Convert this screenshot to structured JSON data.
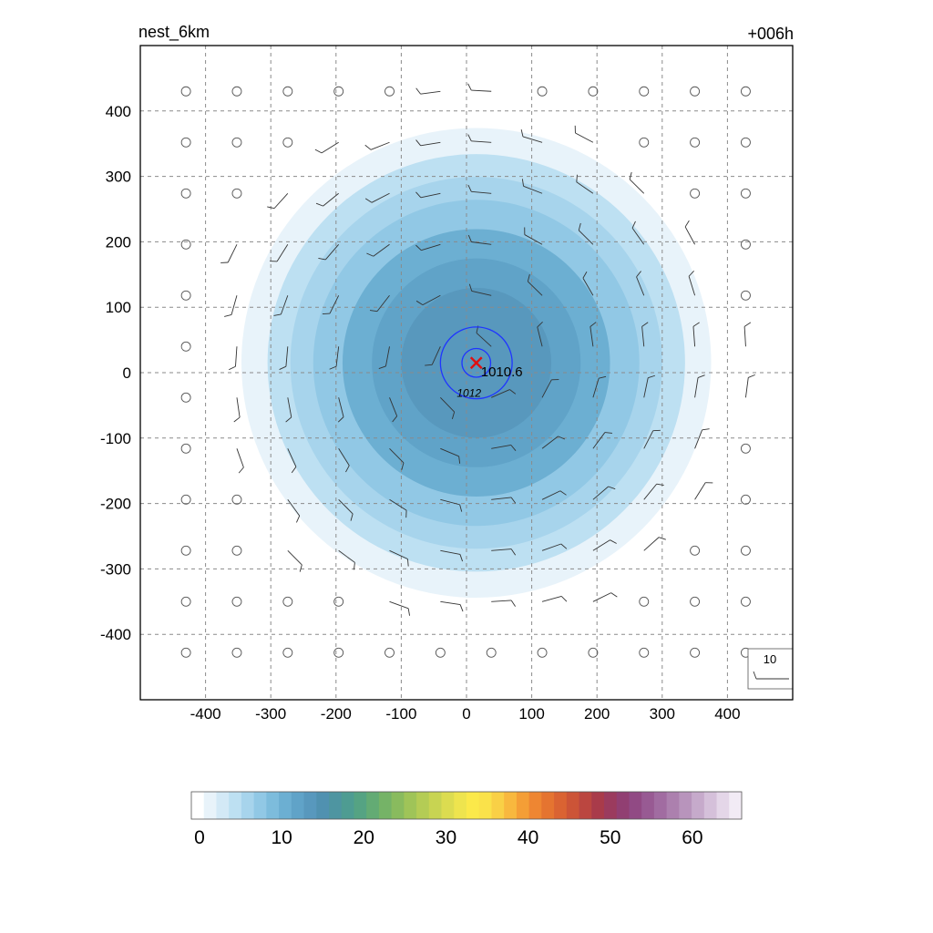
{
  "chart_data": {
    "type": "heatmap",
    "title_left": "nest_6km",
    "title_right": "+006h",
    "x_ticks": [
      -400,
      -300,
      -200,
      -100,
      0,
      100,
      200,
      300,
      400
    ],
    "y_ticks": [
      400,
      300,
      200,
      100,
      0,
      -100,
      -200,
      -300,
      -400
    ],
    "xlim": [
      -500,
      500
    ],
    "ylim": [
      -500,
      500
    ],
    "grid": true,
    "center_marker": {
      "x": 15,
      "y": 15,
      "label": "1010.6",
      "color": "#e01010"
    },
    "contours": [
      {
        "level_label": "1012",
        "radius_km": 55,
        "color": "#1f35ff"
      },
      {
        "level_label": "",
        "radius_km": 22,
        "color": "#1f35ff"
      }
    ],
    "wind_speed_rings": [
      {
        "radius_km": 360,
        "value": 2
      },
      {
        "radius_km": 320,
        "value": 4
      },
      {
        "radius_km": 285,
        "value": 6
      },
      {
        "radius_km": 250,
        "value": 8
      },
      {
        "radius_km": 205,
        "value": 10
      },
      {
        "radius_km": 160,
        "value": 12
      },
      {
        "radius_km": 115,
        "value": 14
      }
    ],
    "wind_key_label": "10",
    "colorbar": {
      "ticks": [
        "0",
        "10",
        "20",
        "30",
        "40",
        "50",
        "60"
      ],
      "min": -1,
      "max": 66,
      "colors": [
        "#ffffff",
        "#e8f3fa",
        "#d3e9f6",
        "#bde0f2",
        "#a7d4ec",
        "#91c8e5",
        "#7dbcdc",
        "#6cafd2",
        "#60a3c8",
        "#5898bd",
        "#5091b0",
        "#4e95a1",
        "#4e9c92",
        "#55a383",
        "#63ab74",
        "#75b367",
        "#89bb5e",
        "#9fc458",
        "#b4cc55",
        "#c8d452",
        "#dcdc50",
        "#eee44e",
        "#fbe94a",
        "#fae24a",
        "#f9d046",
        "#f8b83e",
        "#f49e36",
        "#ee8632",
        "#e57430",
        "#da6332",
        "#cc5437",
        "#bb4640",
        "#a93b4a",
        "#9b3b5e",
        "#913f72",
        "#914a84",
        "#985a93",
        "#a16ca1",
        "#ac80ae",
        "#b894bc",
        "#c6aacb",
        "#d5c0da",
        "#e4d6e8",
        "#f2ebf5"
      ]
    }
  }
}
